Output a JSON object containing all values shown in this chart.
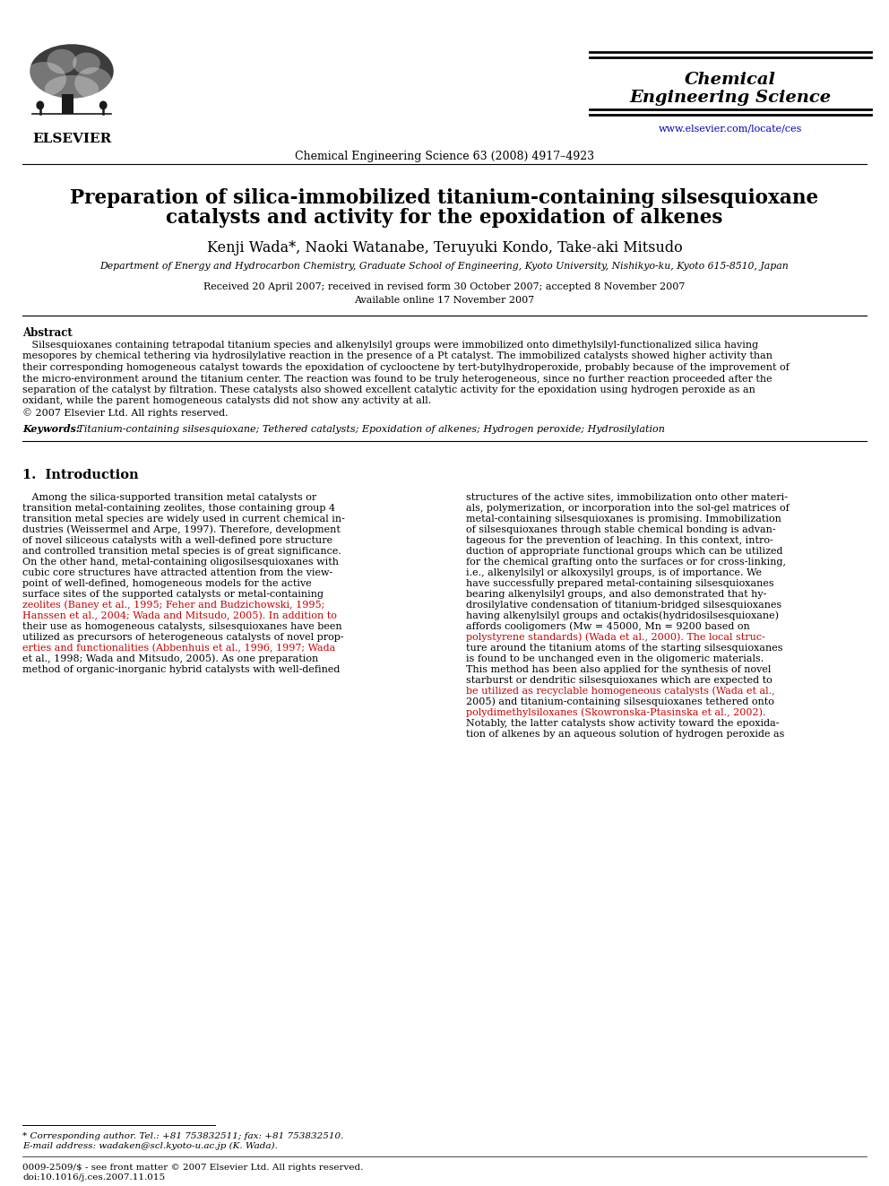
{
  "bg_color": "#ffffff",
  "header": {
    "journal_name_line1": "Chemical",
    "journal_name_line2": "Engineering Science",
    "journal_ref": "Chemical Engineering Science 63 (2008) 4917–4923",
    "website": "www.elsevier.com/locate/ces",
    "elsevier_label": "ELSEVIER"
  },
  "title_line1": "Preparation of silica-immobilized titanium-containing silsesquioxane",
  "title_line2": "catalysts and activity for the epoxidation of alkenes",
  "authors": "Kenji Wada*, Naoki Watanabe, Teruyuki Kondo, Take-aki Mitsudo",
  "affiliation": "Department of Energy and Hydrocarbon Chemistry, Graduate School of Engineering, Kyoto University, Nishikyo-ku, Kyoto 615-8510, Japan",
  "dates": "Received 20 April 2007; received in revised form 30 October 2007; accepted 8 November 2007",
  "available": "Available online 17 November 2007",
  "abstract_heading": "Abstract",
  "keywords_label": "Keywords:",
  "keywords_text": " Titanium-containing silsesquioxane; Tethered catalysts; Epoxidation of alkenes; Hydrogen peroxide; Hydrosilylation",
  "section1_heading": "1.  Introduction",
  "footnote1": "* Corresponding author. Tel.: +81 753832511; fax: +81 753832510.",
  "footnote2": "E-mail address: wadaken@scl.kyoto-u.ac.jp (K. Wada).",
  "footnote3": "0009-2509/$ - see front matter © 2007 Elsevier Ltd. All rights reserved.",
  "footnote4": "doi:10.1016/j.ces.2007.11.015",
  "text_color": "#000000",
  "link_color": "#0000bb",
  "red_color": "#cc0000",
  "title_fontsize": 15.5,
  "author_fontsize": 11.5,
  "body_fontsize": 8.0,
  "small_fontsize": 7.5,
  "journal_name_fontsize": 14,
  "abstract_lines": [
    "   Silsesquioxanes containing tetrapodal titanium species and alkenylsilyl groups were immobilized onto dimethylsilyl-functionalized silica having",
    "mesopores by chemical tethering via hydrosilylative reaction in the presence of a Pt catalyst. The immobilized catalysts showed higher activity than",
    "their corresponding homogeneous catalyst towards the epoxidation of cyclooctene by tert-butylhydroperoxide, probably because of the improvement of",
    "the micro-environment around the titanium center. The reaction was found to be truly heterogeneous, since no further reaction proceeded after the",
    "separation of the catalyst by filtration. These catalysts also showed excellent catalytic activity for the epoxidation using hydrogen peroxide as an",
    "oxidant, while the parent homogeneous catalysts did not show any activity at all.",
    "© 2007 Elsevier Ltd. All rights reserved."
  ],
  "col1_lines": [
    "   Among the silica-supported transition metal catalysts or",
    "transition metal-containing zeolites, those containing group 4",
    "transition metal species are widely used in current chemical in-",
    "dustries (Weissermel and Arpe, 1997). Therefore, development",
    "of novel siliceous catalysts with a well-defined pore structure",
    "and controlled transition metal species is of great significance.",
    "On the other hand, metal-containing oligosilsesquioxanes with",
    "cubic core structures have attracted attention from the view-",
    "point of well-defined, homogeneous models for the active",
    "surface sites of the supported catalysts or metal-containing",
    "zeolites (Baney et al., 1995; Feher and Budzichowski, 1995;",
    "Hanssen et al., 2004; Wada and Mitsudo, 2005). In addition to",
    "their use as homogeneous catalysts, silsesquioxanes have been",
    "utilized as precursors of heterogeneous catalysts of novel prop-",
    "erties and functionalities (Abbenhuis et al., 1996, 1997; Wada",
    "et al., 1998; Wada and Mitsudo, 2005). As one preparation",
    "method of organic-inorganic hybrid catalysts with well-defined"
  ],
  "col1_red_lines": [
    false,
    false,
    false,
    false,
    false,
    false,
    false,
    false,
    false,
    false,
    true,
    true,
    false,
    false,
    true,
    false,
    false
  ],
  "col2_lines": [
    "structures of the active sites, immobilization onto other materi-",
    "als, polymerization, or incorporation into the sol-gel matrices of",
    "metal-containing silsesquioxanes is promising. Immobilization",
    "of silsesquioxanes through stable chemical bonding is advan-",
    "tageous for the prevention of leaching. In this context, intro-",
    "duction of appropriate functional groups which can be utilized",
    "for the chemical grafting onto the surfaces or for cross-linking,",
    "i.e., alkenylsilyl or alkoxysilyl groups, is of importance. We",
    "have successfully prepared metal-containing silsesquioxanes",
    "bearing alkenylsilyl groups, and also demonstrated that hy-",
    "drosilylative condensation of titanium-bridged silsesquioxanes",
    "having alkenylsilyl groups and octakis(hydridosilsesquioxane)",
    "affords cooligomers (Mw = 45000, Mn = 9200 based on",
    "polystyrene standards) (Wada et al., 2000). The local struc-",
    "ture around the titanium atoms of the starting silsesquioxanes",
    "is found to be unchanged even in the oligomeric materials.",
    "This method has been also applied for the synthesis of novel",
    "starburst or dendritic silsesquioxanes which are expected to",
    "be utilized as recyclable homogeneous catalysts (Wada et al.,",
    "2005) and titanium-containing silsesquioxanes tethered onto",
    "polydimethylsiloxanes (Skowronska-Ptasinska et al., 2002).",
    "Notably, the latter catalysts show activity toward the epoxida-",
    "tion of alkenes by an aqueous solution of hydrogen peroxide as"
  ],
  "col2_red_lines": [
    false,
    false,
    false,
    false,
    false,
    false,
    false,
    false,
    false,
    false,
    false,
    false,
    false,
    true,
    false,
    false,
    false,
    false,
    true,
    false,
    true,
    false,
    false
  ]
}
